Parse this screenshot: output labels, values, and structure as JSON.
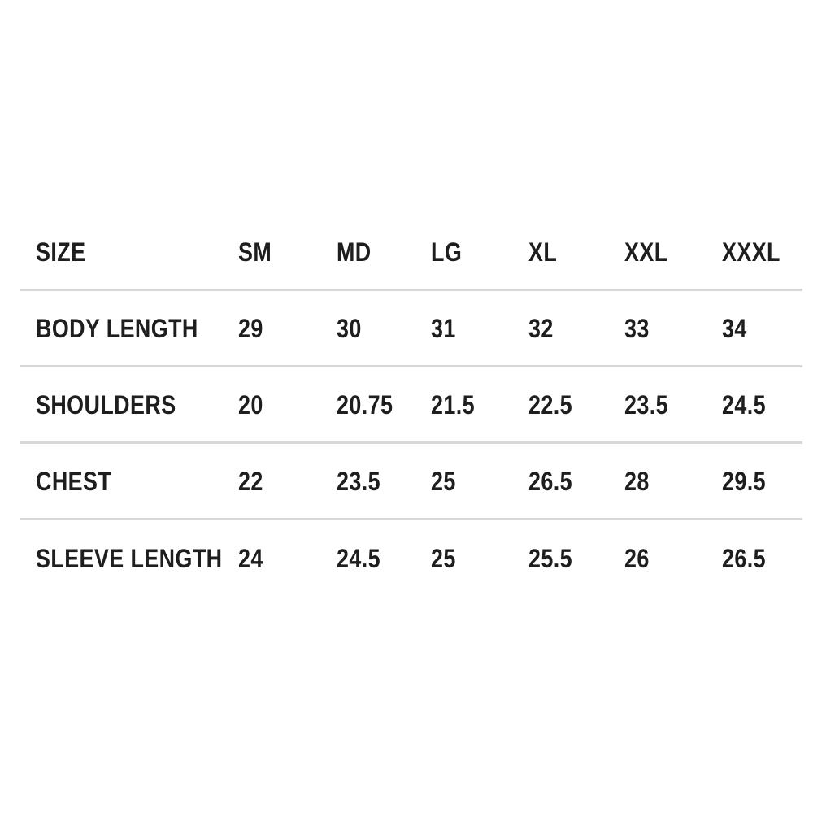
{
  "chart_data": {
    "type": "table",
    "columns": [
      "SIZE",
      "SM",
      "MD",
      "LG",
      "XL",
      "XXL",
      "XXXL"
    ],
    "rows": [
      {
        "label": "BODY LENGTH",
        "values": [
          "29",
          "30",
          "31",
          "32",
          "33",
          "34"
        ]
      },
      {
        "label": "SHOULDERS",
        "values": [
          "20",
          "20.75",
          "21.5",
          "22.5",
          "23.5",
          "24.5"
        ]
      },
      {
        "label": "CHEST",
        "values": [
          "22",
          "23.5",
          "25",
          "26.5",
          "28",
          "29.5"
        ]
      },
      {
        "label": "SLEEVE LENGTH",
        "values": [
          "24",
          "24.5",
          "25",
          "25.5",
          "26",
          "26.5"
        ]
      }
    ],
    "layout_hints": {
      "header_row": true,
      "row_dividers": "horizontal-only",
      "no_outer_border": true,
      "text_alignment": "left"
    }
  },
  "colors": {
    "text": "#1e1e1e",
    "divider": "#d8d8d8",
    "background": "#ffffff"
  }
}
